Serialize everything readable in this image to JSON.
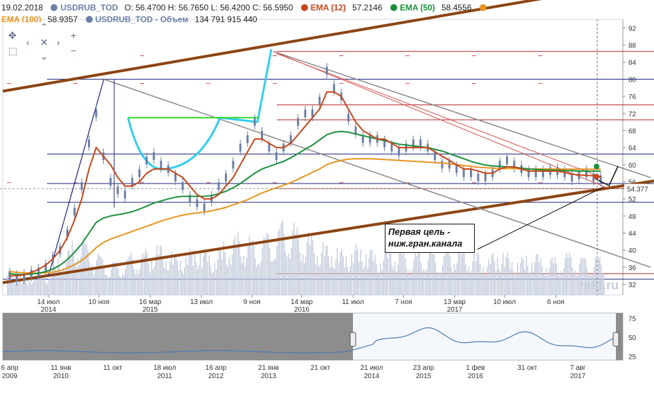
{
  "header": {
    "date": "19.02.2018",
    "symbol": "USDRUB_TOD",
    "ohlc": "O: 56.4700   H: 56.7650   L: 56.4200   C: 56.5950",
    "ema12_label": "EMA (12)",
    "ema12_value": "57.2146",
    "ema50_label": "EMA (50)",
    "ema50_value": "58.4556",
    "ema100_label": "EMA (100)",
    "ema100_value": "58.9357",
    "volume_label": "USDRUB_TOD - Объем",
    "volume_value": "134 791 915 440"
  },
  "colors": {
    "ema12": "#c8451a",
    "ema50": "#1a8f3a",
    "ema100": "#e89420",
    "price": "#6b7fa6",
    "channel": "#8b4513",
    "cup": "#33ccee"
  },
  "callout": {
    "line1": "Первая цель -",
    "line2": "ниж.гран.канала"
  },
  "price_marker": "54.377",
  "watermark": "mfd.ru",
  "chart_data": {
    "type": "line",
    "title": "",
    "y_ticks": [
      32,
      36,
      40,
      44,
      48,
      52,
      56,
      60,
      64,
      68,
      72,
      76,
      80,
      84,
      88,
      92
    ],
    "ylim": [
      29.5,
      94
    ],
    "x_ticks": [
      {
        "label": "14 июл",
        "year": "2014"
      },
      {
        "label": "10 ноя",
        "year": ""
      },
      {
        "label": "16 мар",
        "year": "2015"
      },
      {
        "label": "13 июл",
        "year": ""
      },
      {
        "label": "9 ноя",
        "year": ""
      },
      {
        "label": "14 мар",
        "year": "2016"
      },
      {
        "label": "11 июл",
        "year": ""
      },
      {
        "label": "7 ноя",
        "year": ""
      },
      {
        "label": "13 мар",
        "year": "2017"
      },
      {
        "label": "10 июл",
        "year": ""
      },
      {
        "label": "6 ноя",
        "year": ""
      }
    ],
    "price_series": [
      34,
      33.5,
      33.8,
      34.5,
      35,
      36,
      38,
      40,
      44,
      49,
      55,
      65,
      72,
      62,
      56,
      54,
      53,
      56,
      58,
      61,
      62,
      60,
      59,
      57,
      55,
      52,
      51,
      50,
      52,
      55,
      57,
      60,
      64,
      66,
      70,
      67,
      64,
      62,
      64,
      66,
      70,
      72,
      72,
      75,
      82,
      78,
      76,
      71,
      68,
      66,
      66,
      66,
      65,
      64,
      63,
      64,
      65,
      65,
      64,
      62,
      60,
      60,
      59,
      58,
      58,
      57,
      57,
      58,
      60,
      61,
      60,
      59,
      58,
      58,
      58,
      58.5,
      58.5,
      58,
      57,
      57.5,
      58,
      57,
      56.6
    ],
    "ema12": [
      34,
      34,
      34.2,
      34.8,
      35.5,
      36.5,
      38,
      40,
      43,
      47,
      52,
      59,
      64,
      62,
      60,
      57,
      55,
      55,
      56,
      58,
      59,
      59,
      59,
      58,
      57,
      55,
      53,
      52,
      52,
      53,
      55,
      57,
      60,
      63,
      66,
      66,
      65,
      64,
      64,
      65,
      67,
      69,
      71,
      73,
      77,
      77,
      76,
      73,
      70,
      68,
      67,
      66,
      66,
      65,
      64,
      64,
      64,
      64,
      64,
      63,
      62,
      61,
      60,
      59,
      59,
      58.5,
      58,
      58,
      59,
      59.5,
      59.5,
      59,
      58.5,
      58.5,
      58.5,
      58.5,
      58.5,
      58.2,
      57.8,
      57.6,
      57.5,
      57.4,
      57.2
    ],
    "ema50": [
      34.5,
      34.3,
      34.3,
      34.4,
      34.6,
      35,
      35.6,
      36.5,
      37.8,
      39.5,
      41.5,
      44,
      46.5,
      47.5,
      48,
      48.3,
      48.6,
      49,
      49.6,
      50.3,
      51,
      51.5,
      52,
      52.4,
      52.6,
      52.6,
      52.6,
      52.6,
      52.8,
      53.2,
      53.8,
      54.6,
      55.6,
      56.8,
      58,
      59,
      59.6,
      60.2,
      60.8,
      61.6,
      62.6,
      63.6,
      64.6,
      65.8,
      67,
      67.6,
      67.8,
      67.6,
      67.2,
      66.8,
      66.4,
      66,
      65.6,
      65.2,
      64.8,
      64.6,
      64.4,
      64.2,
      64,
      63.6,
      63.2,
      62.6,
      62,
      61.4,
      60.8,
      60.3,
      59.9,
      59.7,
      59.6,
      59.5,
      59.4,
      59.2,
      59,
      58.9,
      58.8,
      58.7,
      58.7,
      58.6,
      58.6,
      58.5,
      58.5,
      58.5,
      58.46
    ],
    "ema100": [
      35,
      34.8,
      34.7,
      34.6,
      34.6,
      34.7,
      34.9,
      35.2,
      35.8,
      36.6,
      37.6,
      39,
      40.6,
      41.8,
      42.6,
      43.2,
      43.8,
      44.4,
      45,
      45.6,
      46.2,
      46.8,
      47.3,
      47.8,
      48.2,
      48.5,
      48.7,
      48.9,
      49.2,
      49.6,
      50,
      50.6,
      51.2,
      51.8,
      52.6,
      53.4,
      54,
      54.6,
      55.2,
      55.8,
      56.6,
      57.4,
      58.2,
      59,
      60,
      60.6,
      61,
      61.3,
      61.4,
      61.4,
      61.4,
      61.3,
      61.2,
      61.1,
      61,
      60.9,
      60.8,
      60.7,
      60.6,
      60.5,
      60.4,
      60.2,
      60,
      59.8,
      59.6,
      59.4,
      59.3,
      59.2,
      59.1,
      59.1,
      59.1,
      59,
      59,
      59,
      59,
      58.98,
      58.97,
      58.96,
      58.95,
      58.95,
      58.94,
      58.94,
      58.94
    ],
    "volume_series": [
      6,
      5,
      4,
      5,
      6,
      5,
      7,
      9,
      11,
      13,
      14,
      12,
      10,
      9,
      8,
      8,
      9,
      10,
      10,
      11,
      12,
      12,
      11,
      10,
      10,
      11,
      12,
      11,
      10,
      11,
      13,
      14,
      15,
      14,
      13,
      14,
      15,
      16,
      18,
      17,
      16,
      15,
      14,
      13,
      12,
      12,
      11,
      11,
      12,
      12,
      11,
      10,
      11,
      12,
      11,
      10,
      10,
      11,
      11,
      10,
      10,
      11,
      12,
      11,
      10,
      10,
      9,
      10,
      11,
      10,
      9,
      9,
      10,
      10,
      9,
      9,
      9,
      10,
      10,
      9,
      9,
      9,
      9
    ],
    "navigator": {
      "x_ticks": [
        {
          "label": "6 апр",
          "year": "2009"
        },
        {
          "label": "11 янв",
          "year": "2010"
        },
        {
          "label": "11 окт",
          "year": ""
        },
        {
          "label": "18 июл",
          "year": "2011"
        },
        {
          "label": "16 апр",
          "year": "2012"
        },
        {
          "label": "21 янв",
          "year": "2013"
        },
        {
          "label": "21 окт",
          "year": ""
        },
        {
          "label": "21 июл",
          "year": "2014"
        },
        {
          "label": "23 апр",
          "year": "2015"
        },
        {
          "label": "1 фев",
          "year": "2016"
        },
        {
          "label": "31 окт",
          "year": ""
        },
        {
          "label": "7 авг",
          "year": "2017"
        }
      ],
      "y_ticks": [
        25,
        50,
        75
      ]
    }
  }
}
